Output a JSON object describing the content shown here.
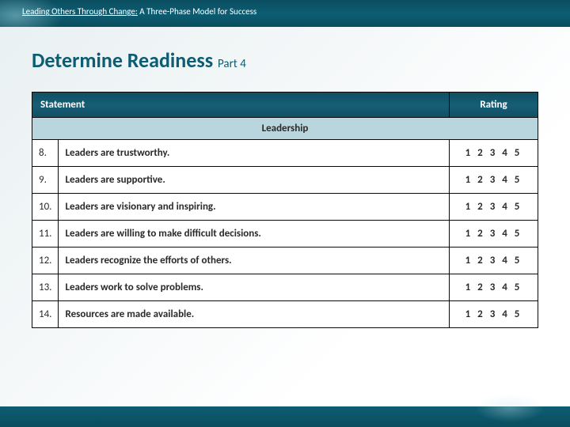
{
  "breadcrumb": {
    "underlined": "Leading Others Through Change:",
    "rest": " A Three-Phase Model for Success"
  },
  "title": {
    "main": "Determine Readiness ",
    "part": "Part 4"
  },
  "table": {
    "headers": {
      "statement": "Statement",
      "rating": "Rating"
    },
    "section": "Leadership",
    "rating_scale": "1  2  3  4  5",
    "rows": [
      {
        "num": "8.",
        "text": "Leaders are trustworthy."
      },
      {
        "num": "9.",
        "text": "Leaders are supportive."
      },
      {
        "num": "10.",
        "text": "Leaders are visionary and inspiring."
      },
      {
        "num": "11.",
        "text": "Leaders are willing to make difficult decisions."
      },
      {
        "num": "12.",
        "text": "Leaders recognize the efforts of others."
      },
      {
        "num": "13.",
        "text": "Leaders work to solve problems."
      },
      {
        "num": "14.",
        "text": "Resources are made available."
      }
    ]
  },
  "colors": {
    "accent": "#0d5d72",
    "section_bg": "#b9d6de",
    "row_bg": "#ffffff",
    "border": "#0a0a0a"
  }
}
